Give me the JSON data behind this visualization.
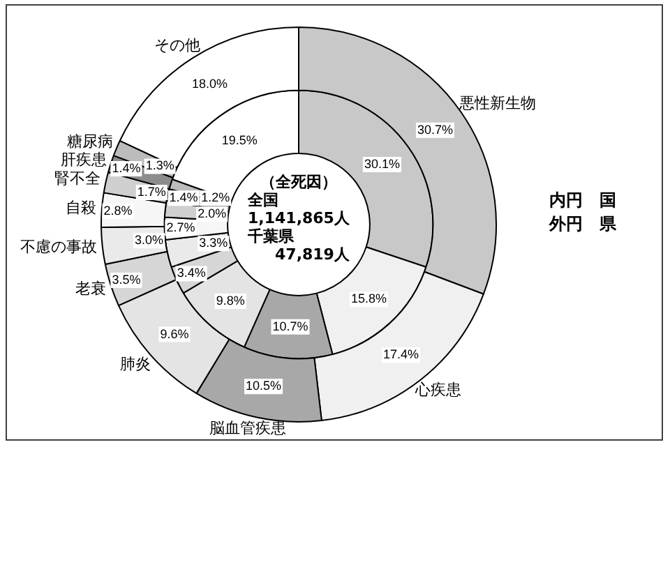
{
  "chart_data": {
    "type": "donut",
    "categories": [
      "悪性新生物",
      "心疾患",
      "脳血管疾患",
      "肺炎",
      "老衰",
      "不慮の事故",
      "自殺",
      "腎不全",
      "肝疾患",
      "糖尿病",
      "その他"
    ],
    "colors": [
      "#c8c8c8",
      "#f0f0f0",
      "#a8a8a8",
      "#e4e4e4",
      "#d6d6d6",
      "#eaeaea",
      "#f6f6f6",
      "#cfcfcf",
      "#8c8c8c",
      "#bcbcbc",
      "#ffffff"
    ],
    "series": [
      {
        "values": [
          30.7,
          17.4,
          10.5,
          9.6,
          3.5,
          3.0,
          2.8,
          1.7,
          1.4,
          1.3,
          18.0
        ],
        "value_labels": [
          "30.7%",
          "17.4%",
          "10.5%",
          "9.6%",
          "3.5%",
          "3.0%",
          "2.8%",
          "1.7%",
          "1.4%",
          "1.3%",
          "18.0%"
        ]
      },
      {
        "values": [
          30.1,
          15.8,
          10.7,
          9.8,
          3.4,
          3.3,
          2.7,
          2.0,
          1.4,
          1.2,
          19.5
        ],
        "value_labels": [
          "30.1%",
          "15.8%",
          "10.7%",
          "9.8%",
          "3.4%",
          "3.3%",
          "2.7%",
          "2.0%",
          "1.4%",
          "1.2%",
          "19.5%"
        ]
      }
    ],
    "annotations": [
      "（全死因）",
      "全国",
      "1,141,865人",
      "千葉県",
      "47,819人",
      "内円　国",
      "外円　県"
    ]
  }
}
